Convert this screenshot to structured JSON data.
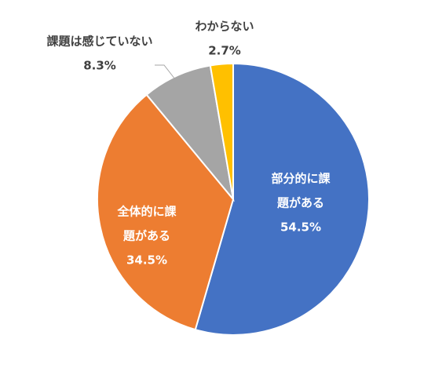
{
  "chart_data": {
    "type": "pie",
    "title": "",
    "start_angle_deg": 0,
    "direction": "clockwise",
    "slices": [
      {
        "label_lines": [
          "部分的に課",
          "題がある"
        ],
        "value": 54.5,
        "value_label": "54.5%",
        "color": "#4472C4",
        "label_position": "inside"
      },
      {
        "label_lines": [
          "全体的に課",
          "題がある"
        ],
        "value": 34.5,
        "value_label": "34.5%",
        "color": "#ED7D31",
        "label_position": "inside"
      },
      {
        "label_lines": [
          "課題は感じていない"
        ],
        "value": 8.3,
        "value_label": "8.3%",
        "color": "#A5A5A5",
        "label_position": "outside"
      },
      {
        "label_lines": [
          "わからない"
        ],
        "value": 2.7,
        "value_label": "2.7%",
        "color": "#FFC000",
        "label_position": "outside"
      }
    ]
  }
}
